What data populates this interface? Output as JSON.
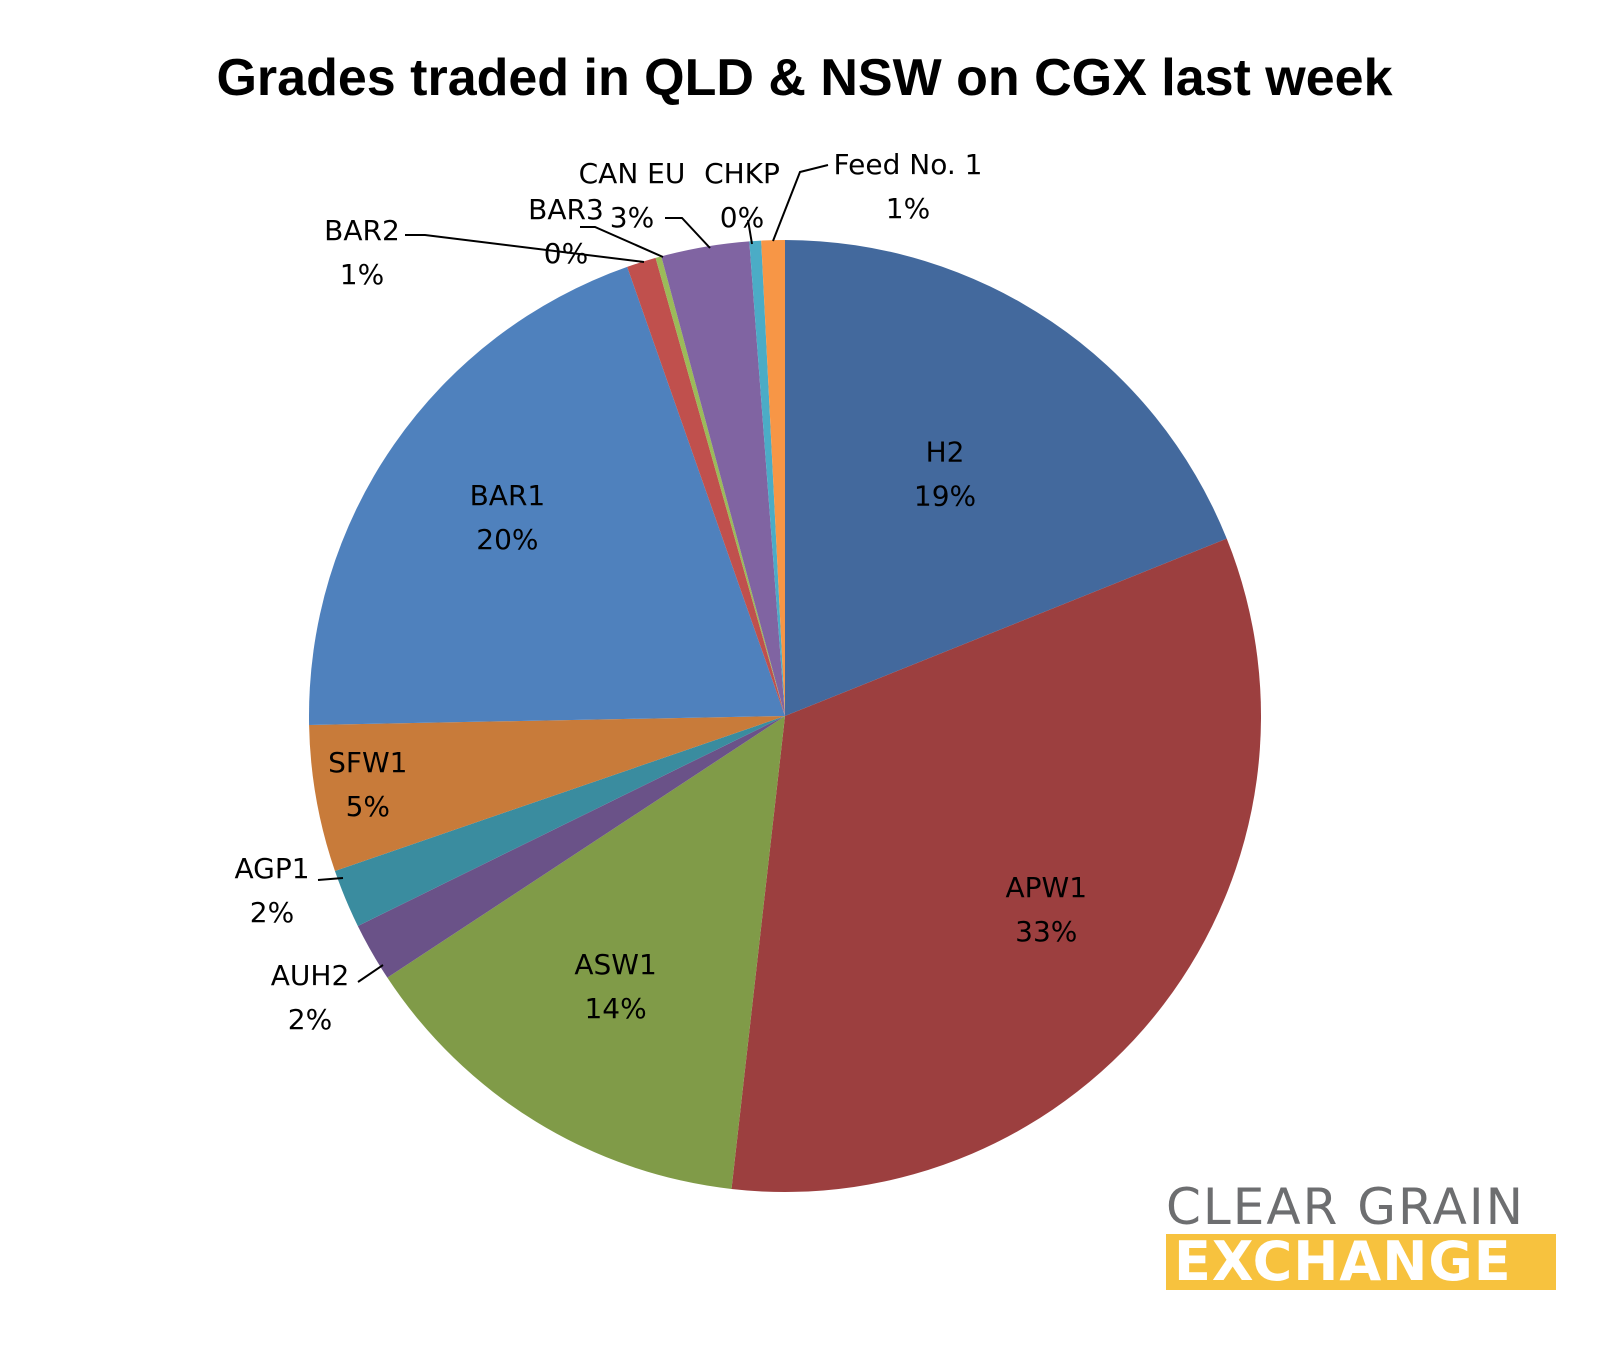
{
  "chart_data": {
    "type": "pie",
    "title": "Grades traded in QLD & NSW on CGX last week",
    "slices": [
      {
        "name": "H2",
        "value": 19,
        "label": "19%",
        "color": "#43699d"
      },
      {
        "name": "APW1",
        "value": 33,
        "label": "33%",
        "color": "#9c3f3f"
      },
      {
        "name": "ASW1",
        "value": 14,
        "label": "14%",
        "color": "#809b48"
      },
      {
        "name": "AUH2",
        "value": 2,
        "label": "2%",
        "color": "#6a5288"
      },
      {
        "name": "AGP1",
        "value": 2,
        "label": "2%",
        "color": "#3a8c9f"
      },
      {
        "name": "SFW1",
        "value": 5,
        "label": "5%",
        "color": "#c87b3a"
      },
      {
        "name": "BAR1",
        "value": 20,
        "label": "20%",
        "color": "#4f81bd"
      },
      {
        "name": "BAR2",
        "value": 1,
        "label": "1%",
        "color": "#c0504d"
      },
      {
        "name": "BAR3",
        "value": 0.2,
        "label": "0%",
        "color": "#9bbb59"
      },
      {
        "name": "CAN EU",
        "value": 3,
        "label": "3%",
        "color": "#8064a2"
      },
      {
        "name": "CHKP",
        "value": 0.4,
        "label": "0%",
        "color": "#4bacc6"
      },
      {
        "name": "Feed No. 1",
        "value": 0.8,
        "label": "1%",
        "color": "#f79646"
      }
    ]
  },
  "logo": {
    "line1": "CLEAR GRAIN",
    "line2": "EXCHANGE"
  }
}
